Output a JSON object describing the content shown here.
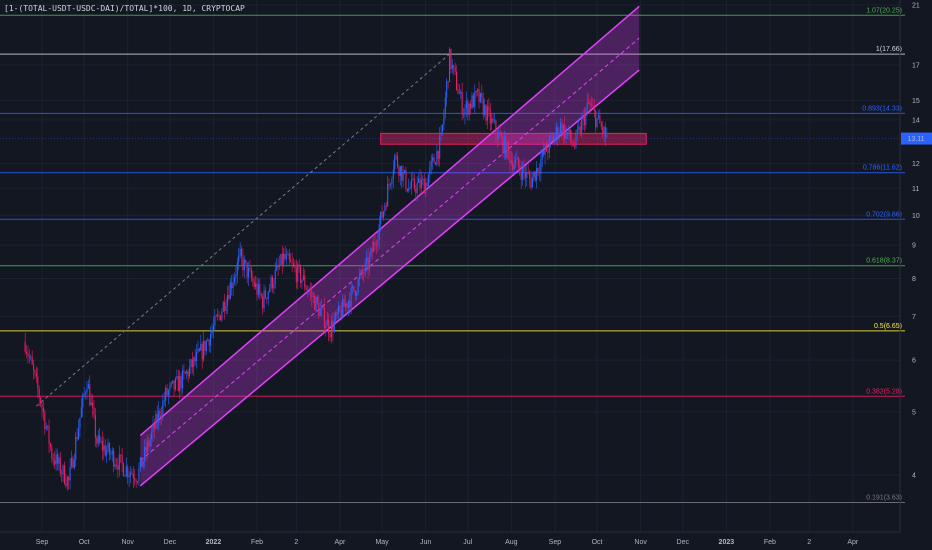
{
  "header": {
    "symbol": "[1-(TOTAL-USDT-USDC-DAI)/TOTAL]*100, 1D, CRYPTOCAP"
  },
  "chart_data": {
    "type": "candlestick",
    "price_scale": "log",
    "current_price": {
      "label": "13.11",
      "value": 13.11,
      "color": "#2962ff"
    },
    "x_ticks": [
      "Sep",
      "Oct",
      "Nov",
      "Dec",
      "2022",
      "Feb",
      "2",
      "Apr",
      "May",
      "Jun",
      "Jul",
      "Aug",
      "Sep",
      "Oct",
      "Nov",
      "Dec",
      "2023",
      "Feb",
      "2",
      "Apr"
    ],
    "y_ticks": [
      "21",
      "17",
      "15",
      "14",
      "12",
      "11",
      "10",
      "9",
      "8",
      "7",
      "6",
      "5",
      "4"
    ],
    "y_tick_values": [
      21,
      17,
      15,
      14,
      12,
      11,
      10,
      9,
      8,
      7,
      6,
      5,
      4
    ],
    "fib_levels": [
      {
        "label": "1.07(20.25)",
        "value": 20.25,
        "color": "#4caf50"
      },
      {
        "label": "1(17.66)",
        "value": 17.66,
        "color": "#d1d4dc"
      },
      {
        "label": "0.893(14.33)",
        "value": 14.33,
        "color": "#2962ff"
      },
      {
        "label": "0.786(11.62)",
        "value": 11.62,
        "color": "#2962ff"
      },
      {
        "label": "0.702(9.86)",
        "value": 9.86,
        "color": "#2962ff"
      },
      {
        "label": "0.618(8.37)",
        "value": 8.37,
        "color": "#4caf50"
      },
      {
        "label": "0.5(6.65)",
        "value": 6.65,
        "color": "#ffeb3b"
      },
      {
        "label": "0.382(5.28)",
        "value": 5.28,
        "color": "#e91e63"
      },
      {
        "label": "0.191(3.63)",
        "value": 3.63,
        "color": "#787b86"
      }
    ],
    "price_path": [
      {
        "date": "2021-08-20",
        "price": 6.4
      },
      {
        "date": "2021-09-01",
        "price": 5.1
      },
      {
        "date": "2021-09-08",
        "price": 4.3
      },
      {
        "date": "2021-09-20",
        "price": 3.9
      },
      {
        "date": "2021-09-28",
        "price": 4.9
      },
      {
        "date": "2021-10-03",
        "price": 5.6
      },
      {
        "date": "2021-10-10",
        "price": 4.5
      },
      {
        "date": "2021-10-20",
        "price": 4.3
      },
      {
        "date": "2021-10-30",
        "price": 4.1
      },
      {
        "date": "2021-11-08",
        "price": 4.0
      },
      {
        "date": "2021-11-18",
        "price": 4.6
      },
      {
        "date": "2021-11-28",
        "price": 5.3
      },
      {
        "date": "2021-12-10",
        "price": 5.6
      },
      {
        "date": "2021-12-24",
        "price": 6.2
      },
      {
        "date": "2022-01-05",
        "price": 7.0
      },
      {
        "date": "2022-01-20",
        "price": 8.6
      },
      {
        "date": "2022-02-05",
        "price": 7.4
      },
      {
        "date": "2022-02-20",
        "price": 8.6
      },
      {
        "date": "2022-03-05",
        "price": 8.0
      },
      {
        "date": "2022-03-25",
        "price": 6.7
      },
      {
        "date": "2022-04-10",
        "price": 7.6
      },
      {
        "date": "2022-04-22",
        "price": 8.5
      },
      {
        "date": "2022-05-02",
        "price": 10.2
      },
      {
        "date": "2022-05-10",
        "price": 12.3
      },
      {
        "date": "2022-05-20",
        "price": 11.0
      },
      {
        "date": "2022-06-01",
        "price": 11.2
      },
      {
        "date": "2022-06-12",
        "price": 13.0
      },
      {
        "date": "2022-06-18",
        "price": 17.4
      },
      {
        "date": "2022-06-28",
        "price": 14.5
      },
      {
        "date": "2022-07-08",
        "price": 15.2
      },
      {
        "date": "2022-07-20",
        "price": 13.6
      },
      {
        "date": "2022-08-01",
        "price": 12.2
      },
      {
        "date": "2022-08-15",
        "price": 11.3
      },
      {
        "date": "2022-08-25",
        "price": 12.5
      },
      {
        "date": "2022-09-05",
        "price": 13.7
      },
      {
        "date": "2022-09-15",
        "price": 12.8
      },
      {
        "date": "2022-09-25",
        "price": 14.8
      },
      {
        "date": "2022-10-01",
        "price": 14.0
      },
      {
        "date": "2022-10-08",
        "price": 13.11
      }
    ],
    "channel": {
      "lower": [
        {
          "date": "2021-11-10",
          "price": 3.85
        },
        {
          "date": "2022-10-31",
          "price": 16.7
        }
      ],
      "upper": [
        {
          "date": "2021-11-10",
          "price": 4.6
        },
        {
          "date": "2022-10-31",
          "price": 20.9
        }
      ],
      "color": "#e040fb"
    },
    "resistance_zone": {
      "from_date": "2022-04-30",
      "to_date": "2022-11-05",
      "low": 12.85,
      "high": 13.35,
      "color": "#e91e63"
    },
    "trend_line": {
      "from": {
        "date": "2021-08-28",
        "price": 5.1
      },
      "to": {
        "date": "2022-06-18",
        "price": 17.66
      },
      "color": "#787b86"
    }
  }
}
